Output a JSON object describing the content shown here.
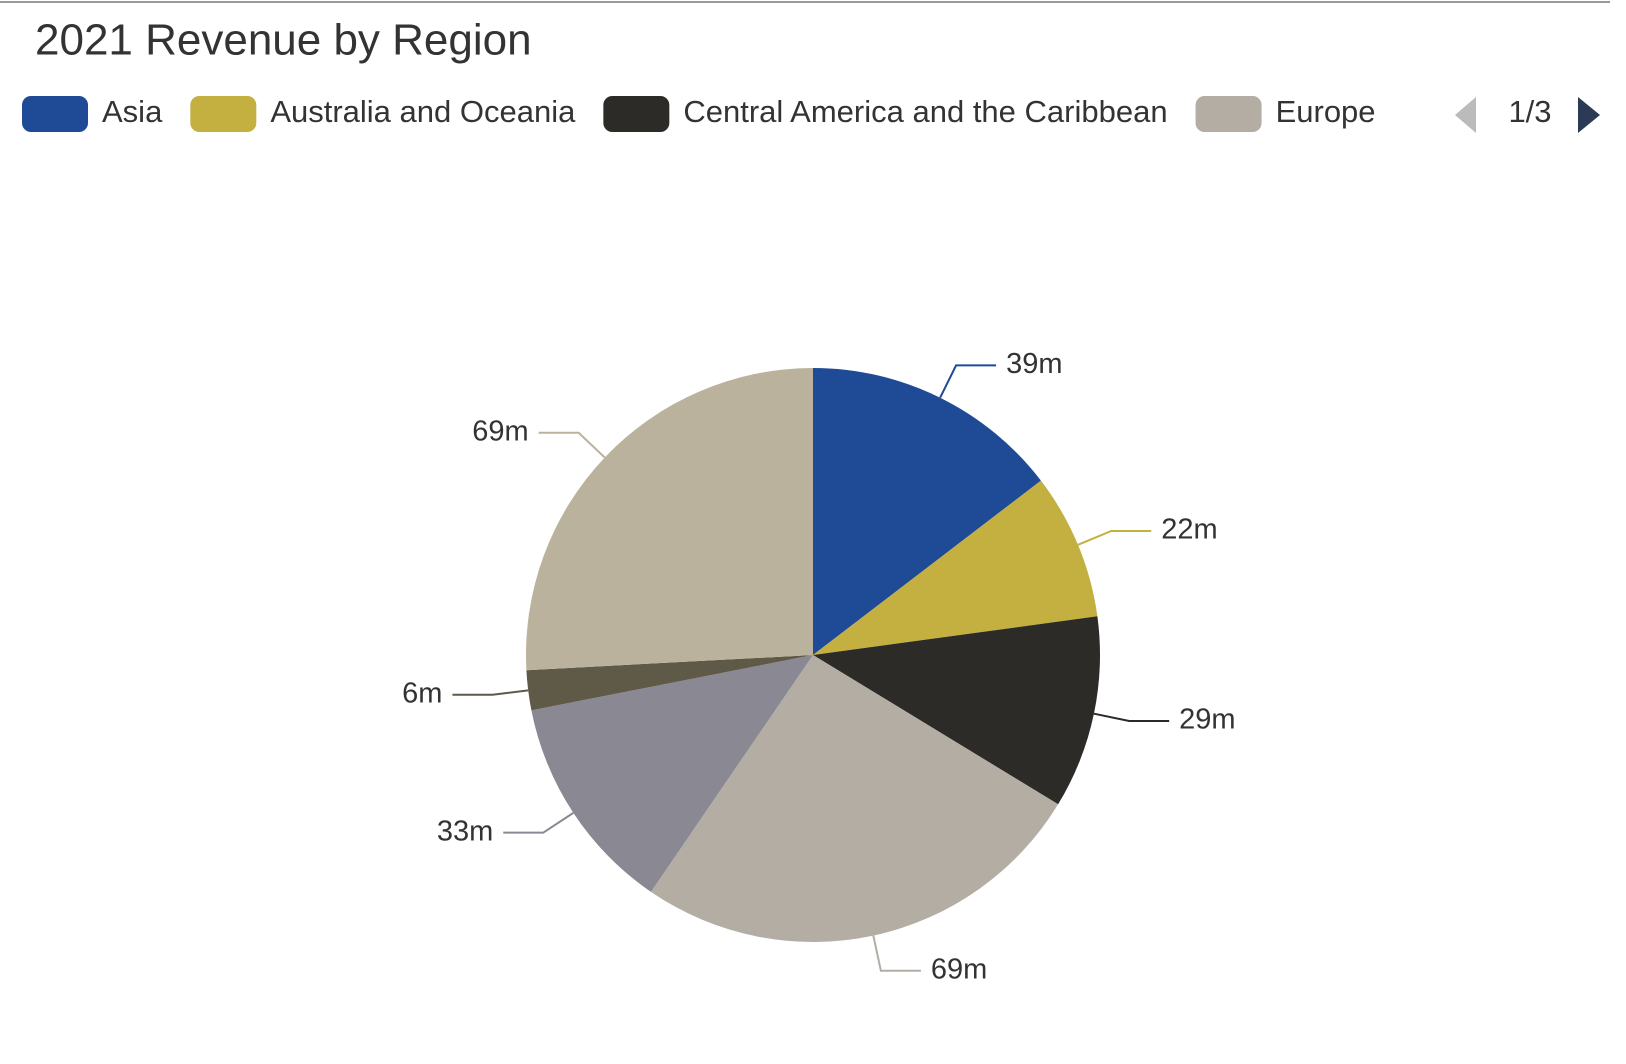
{
  "chart_data": {
    "type": "pie",
    "title": "2021 Revenue by Region",
    "categories": [
      "Asia",
      "Australia and Oceania",
      "Central America and the Caribbean",
      "Europe",
      null,
      null,
      null
    ],
    "values": [
      39,
      22,
      29,
      69,
      33,
      6,
      69
    ],
    "value_labels": [
      "39m",
      "22m",
      "29m",
      "69m",
      "33m",
      "6m",
      "69m"
    ],
    "colors": [
      "#1f4a96",
      "#c4b040",
      "#2d2b27",
      "#b3ada4",
      "#8a8893",
      "#5f5a48",
      "#bab29c"
    ],
    "legend_page": "1/3"
  }
}
